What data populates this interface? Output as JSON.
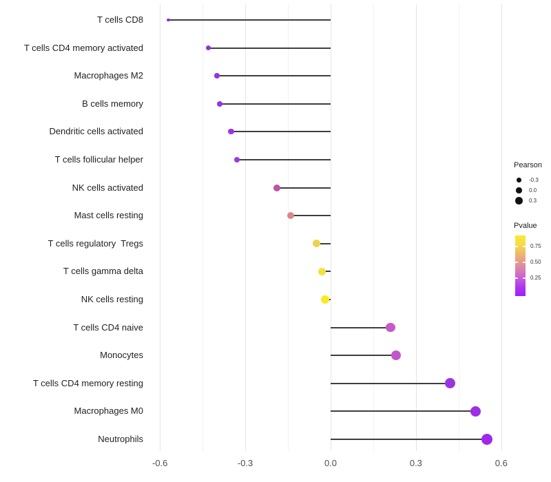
{
  "chart_data": {
    "type": "scatter",
    "subtype": "lollipop",
    "orientation": "horizontal",
    "title": "",
    "xlabel": "",
    "ylabel": "",
    "grid": true,
    "x_axis": {
      "range": [
        -0.655,
        0.625
      ],
      "ticks": [
        {
          "value": -0.6,
          "label": "-0.6"
        },
        {
          "value": -0.3,
          "label": "-0.3"
        },
        {
          "value": 0.0,
          "label": "0.0"
        },
        {
          "value": 0.3,
          "label": "0.3"
        },
        {
          "value": 0.6,
          "label": "0.6"
        }
      ],
      "minor_gridlines": [
        -0.45,
        -0.15,
        0.15,
        0.45
      ]
    },
    "points": [
      {
        "label": "T cells CD8",
        "pearson": -0.57,
        "color": "#8C2BE2"
      },
      {
        "label": "T cells CD4 memory activated",
        "pearson": -0.43,
        "color": "#9232E3"
      },
      {
        "label": "Macrophages M2",
        "pearson": -0.4,
        "color": "#9534E2"
      },
      {
        "label": "B cells memory",
        "pearson": -0.39,
        "color": "#9735E1"
      },
      {
        "label": "Dendritic cells activated",
        "pearson": -0.35,
        "color": "#9B36E3"
      },
      {
        "label": "T cells follicular helper",
        "pearson": -0.33,
        "color": "#A038E0"
      },
      {
        "label": "NK cells activated",
        "pearson": -0.19,
        "color": "#BF53A2"
      },
      {
        "label": "Mast cells resting",
        "pearson": -0.14,
        "color": "#DD8689"
      },
      {
        "label": "T cells regulatory  Tregs",
        "pearson": -0.05,
        "color": "#EFD24B"
      },
      {
        "label": "T cells gamma delta",
        "pearson": -0.03,
        "color": "#F3E23C"
      },
      {
        "label": "NK cells resting",
        "pearson": -0.02,
        "color": "#F8EC1F"
      },
      {
        "label": "T cells CD4 naive",
        "pearson": 0.21,
        "color": "#C75AC6"
      },
      {
        "label": "Monocytes",
        "pearson": 0.23,
        "color": "#C156CC"
      },
      {
        "label": "T cells CD4 memory resting",
        "pearson": 0.42,
        "color": "#9C33E3"
      },
      {
        "label": "Macrophages M0",
        "pearson": 0.51,
        "color": "#9C2DE8"
      },
      {
        "label": "Neutrophils",
        "pearson": 0.55,
        "color": "#9E28EC"
      }
    ],
    "legend_position": "right"
  },
  "legend": {
    "size": {
      "title": "Pearson",
      "entries": [
        {
          "label": "-0.3",
          "value": -0.3
        },
        {
          "label": "0.0",
          "value": 0.0
        },
        {
          "label": "0.3",
          "value": 0.3
        }
      ],
      "dot_color": "#111111"
    },
    "color": {
      "title": "Pvalue",
      "tick_labels": [
        "0.75",
        "0.50",
        "0.25"
      ],
      "gradient_top_to_bottom": [
        "#F8EB31",
        "#F6DC46",
        "#EFBC68",
        "#E59C8C",
        "#D77FB4",
        "#C45BDB",
        "#AE35F0",
        "#A21EF5"
      ]
    }
  }
}
